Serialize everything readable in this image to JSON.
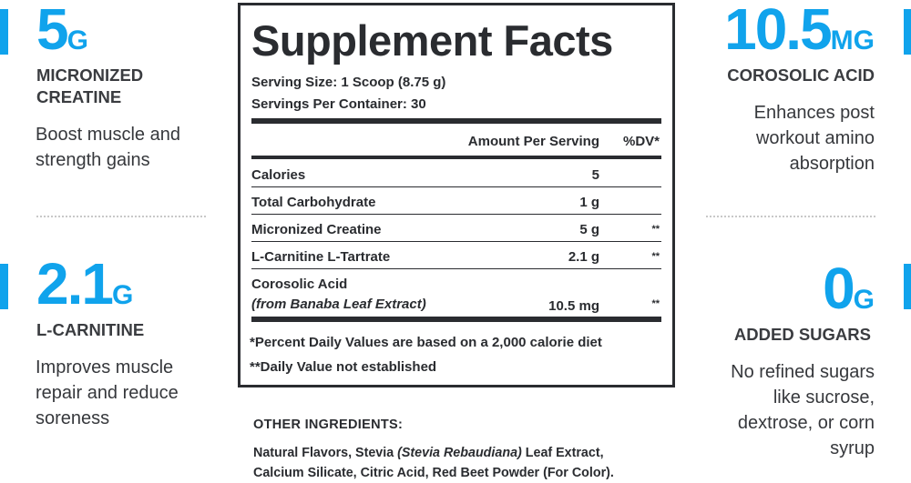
{
  "colors": {
    "accent": "#10a3ec",
    "text": "#2e3034"
  },
  "left": [
    {
      "amount": "5",
      "unit": "G",
      "title_lines": [
        "MICRONIZED",
        "CREATINE"
      ],
      "desc_lines": [
        "Boost muscle and",
        "strength gains"
      ]
    },
    {
      "amount": "2.1",
      "unit": "G",
      "title_lines": [
        "L-CARNITINE"
      ],
      "desc_lines": [
        "Improves muscle",
        "repair and reduce",
        "soreness"
      ]
    }
  ],
  "right": [
    {
      "amount": "10.5",
      "unit": "MG",
      "title_lines": [
        "COROSOLIC ACID"
      ],
      "desc_lines": [
        "Enhances post",
        "workout amino",
        "absorption"
      ]
    },
    {
      "amount": "0",
      "unit": "G",
      "title_lines": [
        "ADDED SUGARS"
      ],
      "desc_lines": [
        "No refined sugars",
        "like sucrose,",
        "dextrose, or corn",
        "syrup"
      ]
    }
  ],
  "facts": {
    "title": "Supplement Facts",
    "serving_size": "Serving Size: 1 Scoop (8.75 g)",
    "servings_per_container": "Servings Per Container: 30",
    "col_amount": "Amount Per Serving",
    "col_dv": "%DV*",
    "rows": [
      {
        "name": "Calories",
        "amount": "5",
        "dv": ""
      },
      {
        "name": "Total Carbohydrate",
        "amount": "1 g",
        "dv": ""
      },
      {
        "name": "Micronized Creatine",
        "amount": "5 g",
        "dv": "**"
      },
      {
        "name": "L-Carnitine L-Tartrate",
        "amount": "2.1 g",
        "dv": "**"
      },
      {
        "name": "Corosolic Acid",
        "sub": "(from Banaba Leaf Extract)",
        "amount": "10.5 mg",
        "dv": "**"
      }
    ],
    "footnote1": "*Percent Daily Values are based on a 2,000 calorie diet",
    "footnote2": "**Daily Value not established"
  },
  "other_ingredients": {
    "heading": "OTHER INGREDIENTS:",
    "line1_a": "Natural Flavors, Stevia ",
    "line1_italic": "(Stevia Rebaudiana)",
    "line1_b": " Leaf Extract,",
    "line2": "Calcium Silicate, Citric Acid, Red Beet Powder (For Color)."
  }
}
